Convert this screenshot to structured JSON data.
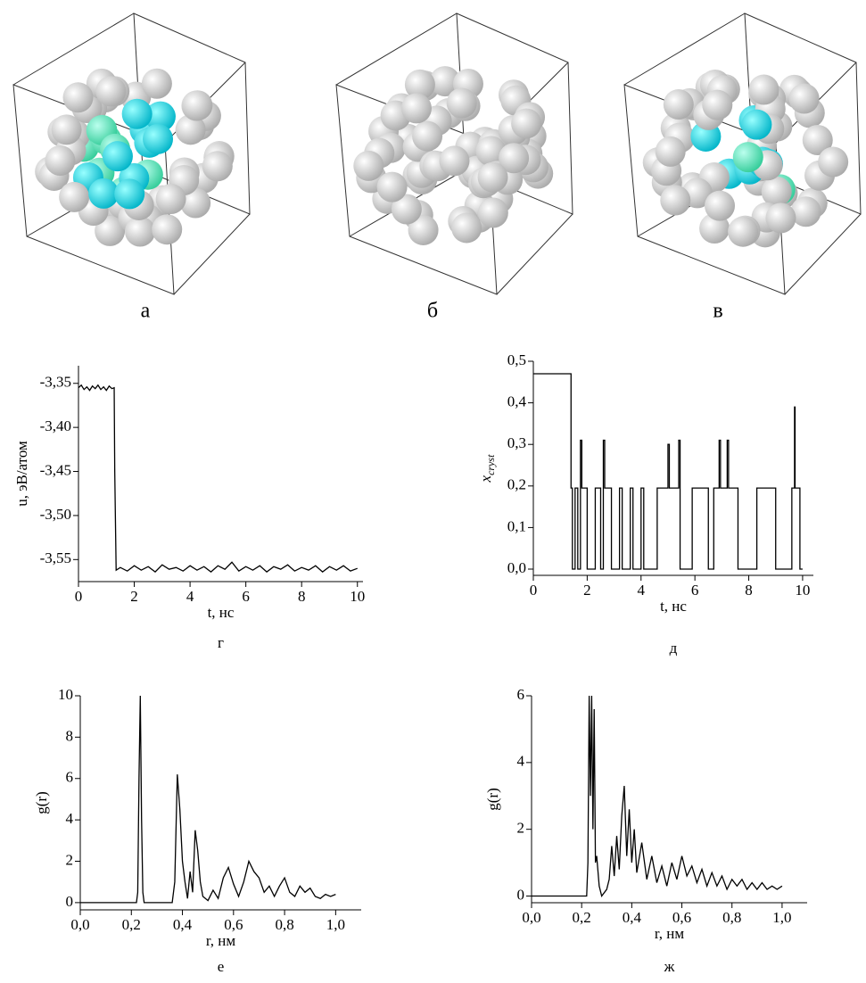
{
  "images": [
    {
      "caption": "а"
    },
    {
      "caption": "б"
    },
    {
      "caption": "в"
    }
  ],
  "chart_data": [
    {
      "type": "line",
      "caption": "г",
      "xlabel": "t, нс",
      "ylabel": "u, эВ/атом",
      "color": "#000000",
      "xlim": [
        0,
        10.2
      ],
      "ylim": [
        -3.575,
        -3.33
      ],
      "xticks": [
        0,
        2,
        4,
        6,
        8,
        10
      ],
      "yticks": [
        {
          "value": -3.55,
          "label": "-3,55"
        },
        {
          "value": -3.5,
          "label": "-3,50"
        },
        {
          "value": -3.45,
          "label": "-3,45"
        },
        {
          "value": -3.4,
          "label": "-3,40"
        },
        {
          "value": -3.35,
          "label": "-3,35"
        }
      ],
      "x": [
        0,
        0.1,
        0.2,
        0.3,
        0.4,
        0.5,
        0.6,
        0.7,
        0.8,
        0.9,
        1.0,
        1.1,
        1.2,
        1.28,
        1.3,
        1.35,
        1.5,
        1.75,
        2,
        2.25,
        2.5,
        2.75,
        3,
        3.25,
        3.5,
        3.75,
        4,
        4.25,
        4.5,
        4.75,
        5,
        5.25,
        5.5,
        5.75,
        6,
        6.25,
        6.5,
        6.75,
        7,
        7.25,
        7.5,
        7.75,
        8,
        8.25,
        8.5,
        8.75,
        9,
        9.25,
        9.5,
        9.75,
        10
      ],
      "values": [
        -3.355,
        -3.352,
        -3.357,
        -3.354,
        -3.358,
        -3.353,
        -3.356,
        -3.352,
        -3.357,
        -3.354,
        -3.358,
        -3.353,
        -3.356,
        -3.355,
        -3.45,
        -3.562,
        -3.559,
        -3.563,
        -3.557,
        -3.562,
        -3.558,
        -3.564,
        -3.556,
        -3.561,
        -3.559,
        -3.563,
        -3.557,
        -3.562,
        -3.558,
        -3.564,
        -3.557,
        -3.561,
        -3.553,
        -3.563,
        -3.558,
        -3.562,
        -3.557,
        -3.564,
        -3.558,
        -3.561,
        -3.556,
        -3.563,
        -3.559,
        -3.562,
        -3.557,
        -3.564,
        -3.558,
        -3.562,
        -3.557,
        -3.563,
        -3.56
      ]
    },
    {
      "type": "line",
      "caption": "д",
      "xlabel": "t, нс",
      "ylabel": "x",
      "ylabel_sub": "cryst",
      "color": "#000000",
      "xlim": [
        0,
        10.4
      ],
      "ylim": [
        -0.015,
        0.5
      ],
      "xticks": [
        0,
        2,
        4,
        6,
        8,
        10
      ],
      "yticks": [
        {
          "value": 0,
          "label": "0,0"
        },
        {
          "value": 0.1,
          "label": "0,1"
        },
        {
          "value": 0.2,
          "label": "0,2"
        },
        {
          "value": 0.3,
          "label": "0,3"
        },
        {
          "value": 0.4,
          "label": "0,4"
        },
        {
          "value": 0.5,
          "label": "0,5"
        }
      ],
      "x": [
        0,
        1.4,
        1.4,
        1.45,
        1.45,
        1.55,
        1.55,
        1.65,
        1.65,
        1.75,
        1.75,
        1.8,
        1.8,
        2.0,
        2.0,
        2.3,
        2.3,
        2.5,
        2.5,
        2.6,
        2.6,
        2.65,
        2.65,
        2.9,
        2.9,
        3.2,
        3.2,
        3.3,
        3.3,
        3.6,
        3.6,
        3.7,
        3.7,
        4.0,
        4.0,
        4.1,
        4.1,
        4.6,
        4.6,
        5.0,
        5.0,
        5.05,
        5.05,
        5.4,
        5.4,
        5.45,
        5.45,
        5.9,
        5.9,
        6.5,
        6.5,
        6.7,
        6.7,
        6.9,
        6.9,
        6.95,
        6.95,
        7.2,
        7.2,
        7.25,
        7.25,
        7.6,
        7.6,
        8.3,
        8.3,
        9.0,
        9.0,
        9.6,
        9.6,
        9.7,
        9.7,
        9.72,
        9.72,
        9.9,
        9.9,
        10
      ],
      "values": [
        0.47,
        0.47,
        0.195,
        0.195,
        0,
        0,
        0.195,
        0.195,
        0,
        0,
        0.31,
        0.31,
        0.195,
        0.195,
        0,
        0,
        0.195,
        0.195,
        0,
        0,
        0.31,
        0.31,
        0.195,
        0.195,
        0,
        0,
        0.195,
        0.195,
        0,
        0,
        0.195,
        0.195,
        0,
        0,
        0.195,
        0.195,
        0,
        0,
        0.195,
        0.195,
        0.3,
        0.3,
        0.195,
        0.195,
        0.31,
        0.31,
        0,
        0,
        0.195,
        0.195,
        0,
        0,
        0.195,
        0.195,
        0.31,
        0.31,
        0.195,
        0.195,
        0.31,
        0.31,
        0.195,
        0.195,
        0,
        0,
        0.195,
        0.195,
        0,
        0,
        0.195,
        0.195,
        0.39,
        0.39,
        0.195,
        0.195,
        0,
        0
      ]
    },
    {
      "type": "line",
      "caption": "е",
      "xlabel": "r, нм",
      "ylabel": "g(r)",
      "color": "#000000",
      "xlim": [
        0,
        1.1
      ],
      "ylim": [
        -0.35,
        10
      ],
      "xticks": [
        {
          "value": 0,
          "label": "0,0"
        },
        {
          "value": 0.2,
          "label": "0,2"
        },
        {
          "value": 0.4,
          "label": "0,4"
        },
        {
          "value": 0.6,
          "label": "0,6"
        },
        {
          "value": 0.8,
          "label": "0,8"
        },
        {
          "value": 1.0,
          "label": "1,0"
        }
      ],
      "yticks": [
        0,
        2,
        4,
        6,
        8,
        10
      ],
      "x": [
        0,
        0.22,
        0.225,
        0.23,
        0.235,
        0.24,
        0.245,
        0.25,
        0.36,
        0.37,
        0.38,
        0.39,
        0.4,
        0.41,
        0.42,
        0.43,
        0.44,
        0.45,
        0.46,
        0.47,
        0.48,
        0.5,
        0.52,
        0.54,
        0.56,
        0.58,
        0.6,
        0.62,
        0.64,
        0.66,
        0.68,
        0.7,
        0.72,
        0.74,
        0.76,
        0.78,
        0.8,
        0.82,
        0.84,
        0.86,
        0.88,
        0.9,
        0.92,
        0.94,
        0.96,
        0.98,
        1.0
      ],
      "values": [
        0,
        0,
        0.5,
        6,
        10,
        4,
        0.5,
        0,
        0,
        1,
        6.2,
        4.5,
        2,
        1,
        0.2,
        1.5,
        0.5,
        3.5,
        2.5,
        1,
        0.3,
        0.1,
        0.6,
        0.2,
        1.2,
        1.7,
        0.9,
        0.3,
        1,
        2,
        1.5,
        1.2,
        0.5,
        0.8,
        0.3,
        0.8,
        1.2,
        0.5,
        0.3,
        0.8,
        0.5,
        0.7,
        0.3,
        0.2,
        0.4,
        0.3,
        0.4
      ]
    },
    {
      "type": "line",
      "caption": "ж",
      "xlabel": "r, нм",
      "ylabel": "g(r)",
      "color": "#000000",
      "xlim": [
        0,
        1.1
      ],
      "ylim": [
        -0.2,
        6
      ],
      "xticks": [
        {
          "value": 0,
          "label": "0,0"
        },
        {
          "value": 0.2,
          "label": "0,2"
        },
        {
          "value": 0.4,
          "label": "0,4"
        },
        {
          "value": 0.6,
          "label": "0,6"
        },
        {
          "value": 0.8,
          "label": "0,8"
        },
        {
          "value": 1.0,
          "label": "1,0"
        }
      ],
      "yticks": [
        0,
        2,
        4,
        6
      ],
      "x": [
        0,
        0.22,
        0.225,
        0.23,
        0.235,
        0.24,
        0.245,
        0.25,
        0.255,
        0.26,
        0.27,
        0.28,
        0.3,
        0.31,
        0.32,
        0.33,
        0.34,
        0.35,
        0.36,
        0.37,
        0.38,
        0.39,
        0.4,
        0.41,
        0.42,
        0.44,
        0.46,
        0.48,
        0.5,
        0.52,
        0.54,
        0.56,
        0.58,
        0.6,
        0.62,
        0.64,
        0.66,
        0.68,
        0.7,
        0.72,
        0.74,
        0.76,
        0.78,
        0.8,
        0.82,
        0.84,
        0.86,
        0.88,
        0.9,
        0.92,
        0.94,
        0.96,
        0.98,
        1.0
      ],
      "values": [
        0,
        0,
        1,
        6,
        3,
        6,
        2,
        5.6,
        1,
        1.2,
        0.3,
        0,
        0.2,
        0.5,
        1.5,
        0.6,
        1.8,
        0.8,
        2.4,
        3.3,
        1.2,
        2.6,
        1,
        2,
        0.7,
        1.6,
        0.5,
        1.2,
        0.4,
        0.9,
        0.3,
        1,
        0.5,
        1.2,
        0.6,
        0.9,
        0.4,
        0.8,
        0.3,
        0.7,
        0.3,
        0.6,
        0.2,
        0.5,
        0.3,
        0.5,
        0.2,
        0.4,
        0.2,
        0.4,
        0.2,
        0.3,
        0.2,
        0.3
      ]
    }
  ]
}
